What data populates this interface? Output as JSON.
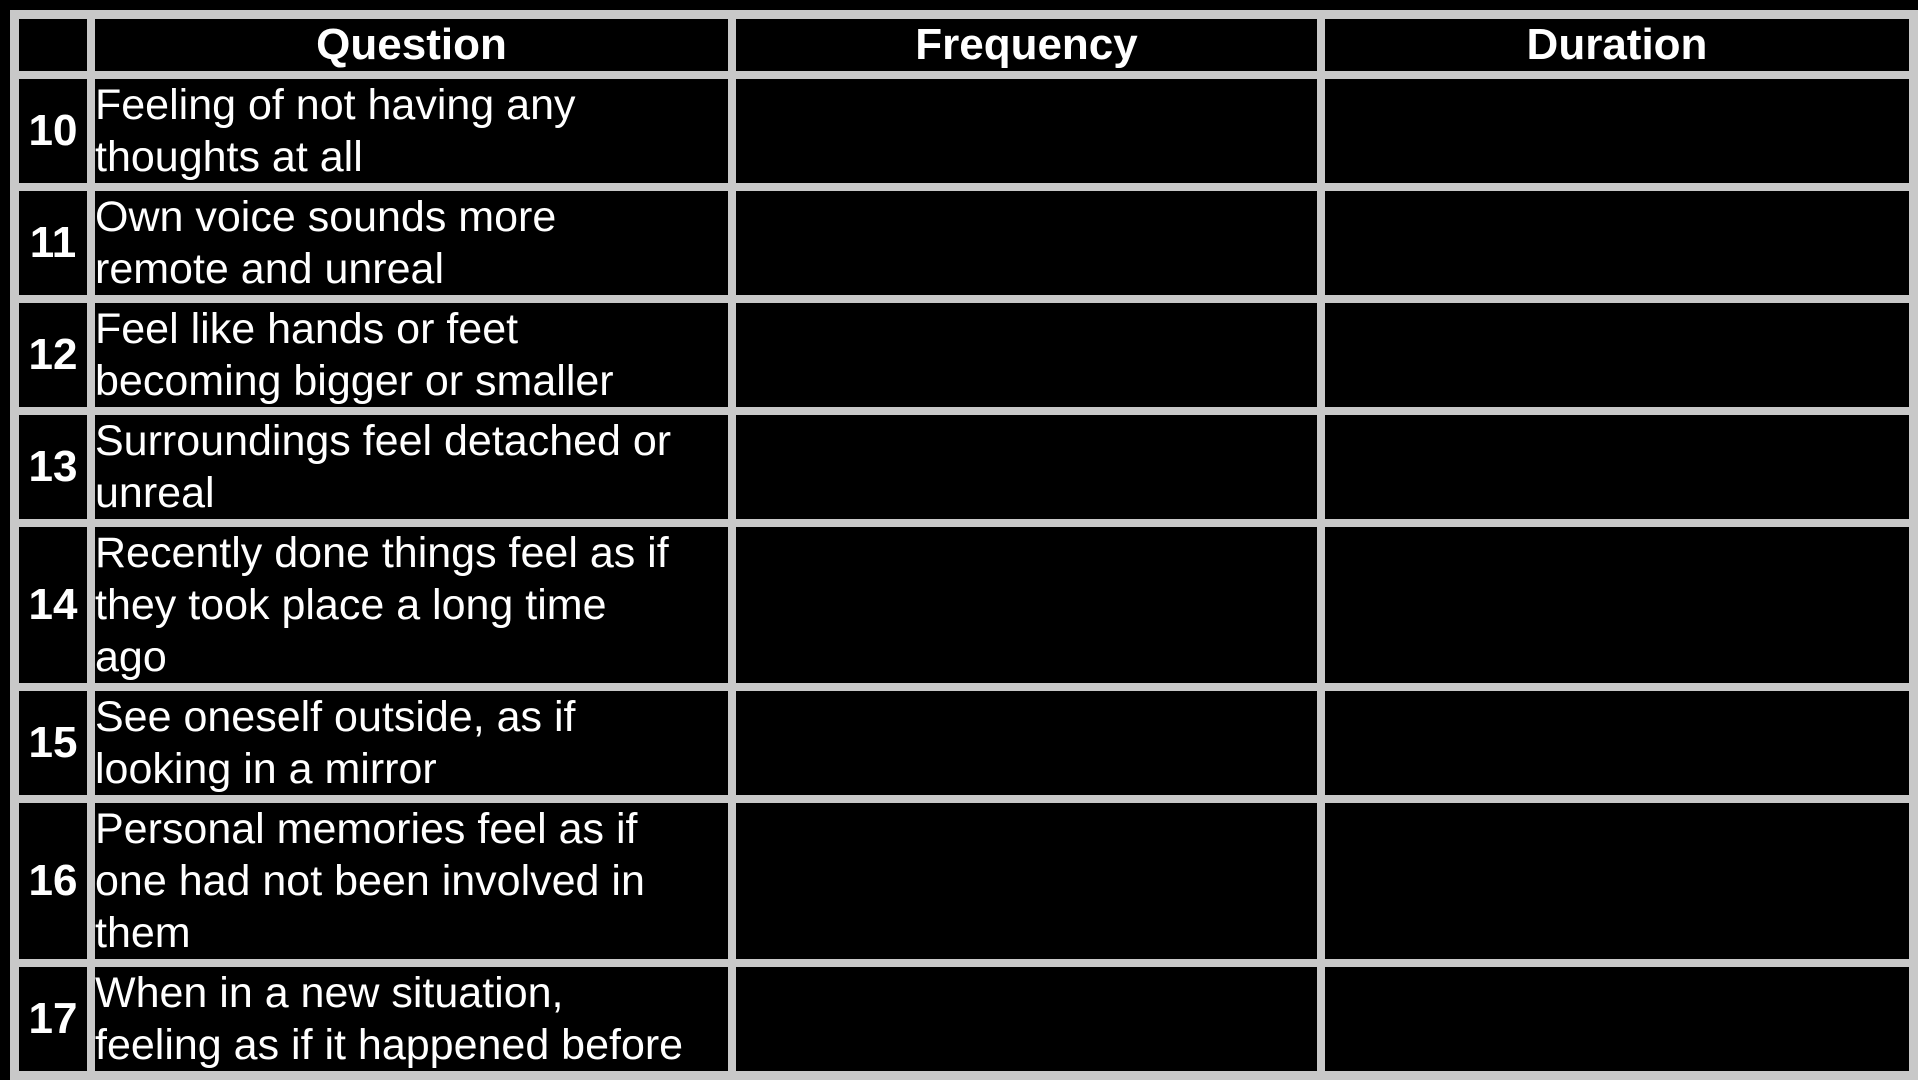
{
  "table": {
    "headers": {
      "number": "",
      "question": "Question",
      "frequency": "Frequency",
      "duration": "Duration"
    },
    "rows": [
      {
        "number": "10",
        "question": "Feeling of not having any\nthoughts at all",
        "frequency": "",
        "duration": ""
      },
      {
        "number": "11",
        "question": "Own voice sounds more\nremote and unreal",
        "frequency": "",
        "duration": ""
      },
      {
        "number": "12",
        "question": "Feel like hands or feet\nbecoming bigger or smaller",
        "frequency": "",
        "duration": ""
      },
      {
        "number": "13",
        "question": "Surroundings feel detached or\nunreal",
        "frequency": "",
        "duration": ""
      },
      {
        "number": "14",
        "question": "Recently done things feel as if\nthey took place a long time\nago",
        "frequency": "",
        "duration": ""
      },
      {
        "number": "15",
        "question": "See oneself outside, as if\nlooking in a mirror",
        "frequency": "",
        "duration": ""
      },
      {
        "number": "16",
        "question": "Personal memories feel as if\none had not been involved in\nthem",
        "frequency": "",
        "duration": ""
      },
      {
        "number": "17",
        "question": "When in a new situation,\nfeeling as if it happened before",
        "frequency": "",
        "duration": ""
      }
    ]
  },
  "colors": {
    "background": "#000000",
    "grid_lines": "#c8c8c8",
    "text": "#ffffff"
  }
}
